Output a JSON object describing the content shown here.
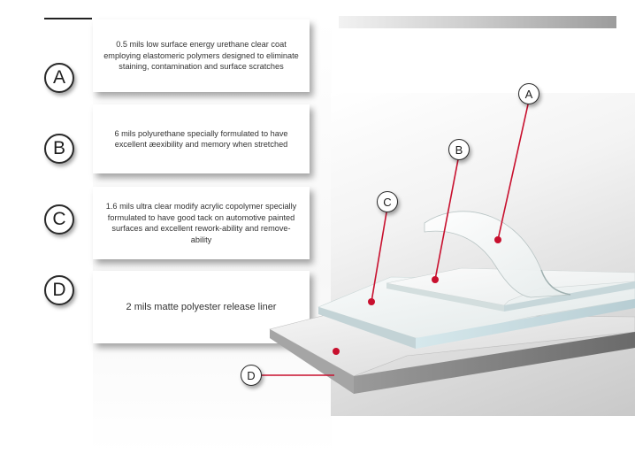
{
  "layers": [
    {
      "letter": "A",
      "text": "0.5 mils low surface energy urethane clear coat employing elastomeric polymers designed to eliminate staining, contamination and surface scratches"
    },
    {
      "letter": "B",
      "text": "6 mils polyurethane specially formulated to have excellent æexibility and memory when stretched"
    },
    {
      "letter": "C",
      "text": "1.6 mils ultra clear modify acrylic copolymer specially formulated to have good tack on automotive painted surfaces and excellent rework-ability and remove-ability"
    },
    {
      "letter": "D",
      "text": "2 mils matte polyester release liner"
    }
  ],
  "colors": {
    "callout_line": "#c8102e",
    "badge_border": "#2a2a2a"
  }
}
